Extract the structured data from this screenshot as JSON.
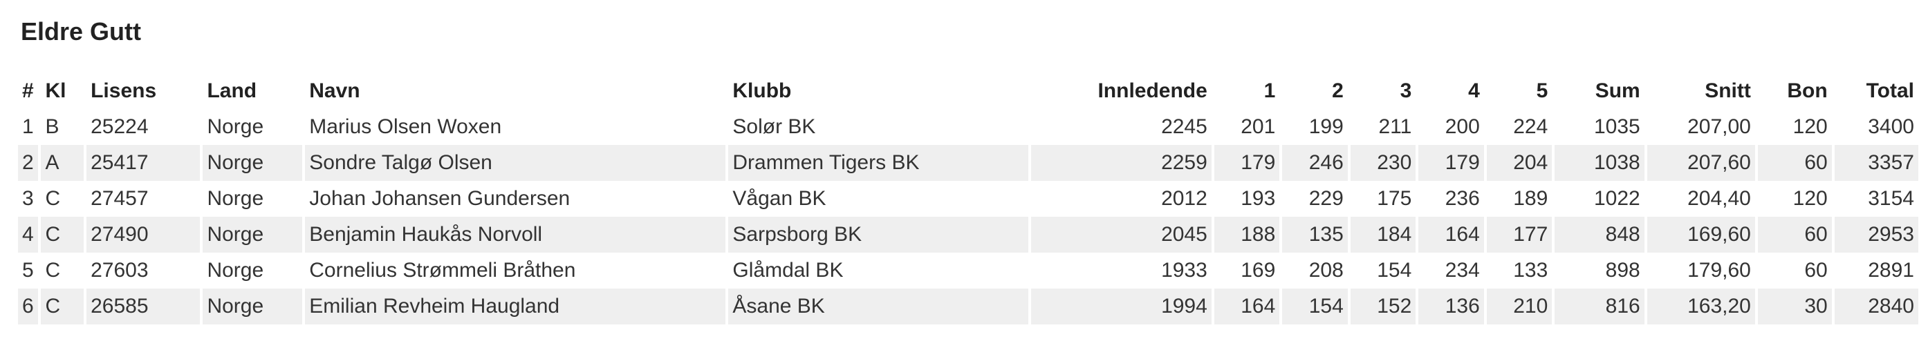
{
  "title": "Eldre Gutt",
  "columns": [
    "#",
    "Kl",
    "Lisens",
    "Land",
    "Navn",
    "Klubb",
    "Innledende",
    "1",
    "2",
    "3",
    "4",
    "5",
    "Sum",
    "Snitt",
    "Bon",
    "Total"
  ],
  "rows": [
    [
      "1",
      "B",
      "25224",
      "Norge",
      "Marius Olsen Woxen",
      "Solør BK",
      "2245",
      "201",
      "199",
      "211",
      "200",
      "224",
      "1035",
      "207,00",
      "120",
      "3400"
    ],
    [
      "2",
      "A",
      "25417",
      "Norge",
      "Sondre Talgø Olsen",
      "Drammen Tigers BK",
      "2259",
      "179",
      "246",
      "230",
      "179",
      "204",
      "1038",
      "207,60",
      "60",
      "3357"
    ],
    [
      "3",
      "C",
      "27457",
      "Norge",
      "Johan Johansen Gundersen",
      "Vågan BK",
      "2012",
      "193",
      "229",
      "175",
      "236",
      "189",
      "1022",
      "204,40",
      "120",
      "3154"
    ],
    [
      "4",
      "C",
      "27490",
      "Norge",
      "Benjamin Haukås Norvoll",
      "Sarpsborg BK",
      "2045",
      "188",
      "135",
      "184",
      "164",
      "177",
      "848",
      "169,60",
      "60",
      "2953"
    ],
    [
      "5",
      "C",
      "27603",
      "Norge",
      "Cornelius Strømmeli Bråthen",
      "Glåmdal BK",
      "1933",
      "169",
      "208",
      "154",
      "234",
      "133",
      "898",
      "179,60",
      "60",
      "2891"
    ],
    [
      "6",
      "C",
      "26585",
      "Norge",
      "Emilian Revheim Haugland",
      "Åsane BK",
      "1994",
      "164",
      "154",
      "152",
      "136",
      "210",
      "816",
      "163,20",
      "30",
      "2840"
    ]
  ]
}
